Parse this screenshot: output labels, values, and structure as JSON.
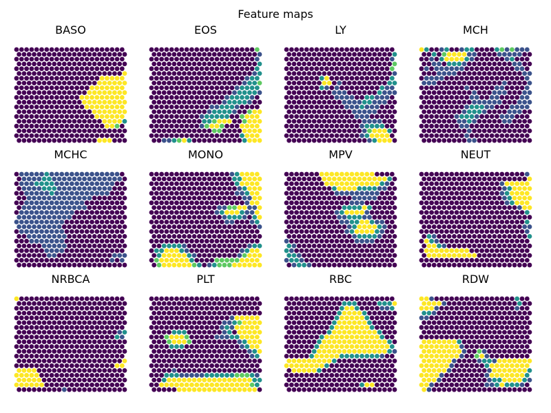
{
  "figure_title": "Feature maps",
  "chart_data": {
    "type": "heatmap",
    "title": "Feature maps",
    "grid": false,
    "colormap": "viridis",
    "colors": {
      "low": "#440154",
      "mid_low": "#3b528b",
      "mid": "#21918c",
      "mid_high": "#5ec962",
      "high": "#fde725"
    },
    "rows": 20,
    "cols": 22,
    "encoding": "Each map is 20 rows (top to bottom); each row string has 22 cells: 0=#440154, 1=#3b528b, 2=#21918c, 3=#5ec962, 4=#fde725",
    "maps": [
      {
        "name": "BASO",
        "rows": [
          "0000000000000000000000",
          "0000000000000000000000",
          "0000000000000000000000",
          "0000000000000000000000",
          "0000000000000000000000",
          "0000000000000000000004",
          "0000000000000000044444",
          "0000000000000000444444",
          "0000000000000004444444",
          "0000000000000044444444",
          "0000000000000444444444",
          "0000000000000444444444",
          "0000000000000044444444",
          "0000000000000004444444",
          "0000000000000000444444",
          "0000000000000000044442",
          "0000000000000000004430",
          "0000000000000000000000",
          "0000000000000000000000",
          "0000000000000000444000"
        ]
      },
      {
        "name": "EOS",
        "rows": [
          "0000000000000000000003",
          "0000000000000000000001",
          "0000000000000000000001",
          "0000000000000000000002",
          "0000000000000000000002",
          "0000000000000000000012",
          "0000000000000000000122",
          "0000000000000000001223",
          "0000000000000000012222",
          "0000000000000000122221",
          "0000000000000001222210",
          "0000000000000012222100",
          "0000000000001122210000",
          "0000000000012222100344",
          "0000000000122222003444",
          "0000000000223444003444",
          "0000000000134430004444",
          "0000000000003300004444",
          "0000000000000000002444",
          "0011234200000000002444"
        ]
      },
      {
        "name": "LY",
        "rows": [
          "0000000000000000000000",
          "0000000000000000000002",
          "0000000000000000000001",
          "0000000000000000000003",
          "0000000000000000000003",
          "0000000000000000000001",
          "0000000240000000000002",
          "0000000440100000000022",
          "0000000210100000000211",
          "0000000001110000002111",
          "0000000000111100221110",
          "0000000000011112211100",
          "0000000000001112111000",
          "0000000000000111110000",
          "0000000000000011100000",
          "0000000000000001111000",
          "0000000000000001222200",
          "0000000000000001344420",
          "0000000000000001244440",
          "0000000000000000124440"
        ]
      },
      {
        "name": "MCH",
        "rows": [
          "4200120012200002313111",
          "0020344441100001111100",
          "0010244442100000012000",
          "0011022210000000001100",
          "0101111110000000000110",
          "0001111000000000000011",
          "0111100000000000000001",
          "1110000000000000100001",
          "0000000001000001100001",
          "0000000000100011100011",
          "0000000000110011000011",
          "0000000000111111000111",
          "0000000001222110001111",
          "0000000012221000011100",
          "0000000122210000111000",
          "0000000112100000110000",
          "0000000011000000000000",
          "0000000001000000000000",
          "0000000001000000000000",
          "0000000001100000000000"
        ]
      },
      {
        "name": "MCHC",
        "rows": [
          "0111112111111111111110",
          "0111122111111111111110",
          "0111222211111111111100",
          "0111122211111111111000",
          "0011111211111111111000",
          "0011111111111110000000",
          "0011111111111100000000",
          "0111111111111100000000",
          "0111111111110000000000",
          "1111111111100000000000",
          "1111111111000000000000",
          "1111111110000000000000",
          "0111111111000000000000",
          "0011111111000000000000",
          "0001111111000000000000",
          "0000011111000000000000",
          "0000001111000000000000",
          "0000001100000000000111",
          "0000000000000000000101",
          "0000000000000000000000"
        ]
      },
      {
        "name": "MONO",
        "rows": [
          "0000000000000000124444",
          "0000000000000000224444",
          "0000000000000000024444",
          "0000000000000000012444",
          "0000000000000000011244",
          "0000000000000000001144",
          "0000000000000000000144",
          "0000000000000113344114",
          "0000000000000124442114",
          "0000000000000012221024",
          "0000000000000001100012",
          "0000000000000000000001",
          "0000000000000000000000",
          "0000000000000000000000",
          "0000000000000000000000",
          "0022221000000000000122",
          "0224442100000000001244",
          "0244444210000000013444",
          "0344444420000333334444",
          "0344444432012333444444"
        ]
      },
      {
        "name": "MPV",
        "rows": [
          "0000000444444444440000",
          "0000000444444444444420",
          "0000000044444444444210",
          "0000000002444422221100",
          "0000000000111111111000",
          "0000000000000111110000",
          "0000000000000111000000",
          "0000000000022224200000",
          "0000000000124444100000",
          "0000000000112221100000",
          "0000000000011224421100",
          "0000000000001244442100",
          "0000000000001244442100",
          "0000000000000122221000",
          "1000000000000011110000",
          "2100000000000000000000",
          "2100000000000000000000",
          "2210000000000000000000",
          "1221000000000000000000",
          "0122100000000000000000"
        ]
      },
      {
        "name": "NEUT",
        "rows": [
          "0000000000000000000001",
          "0000000000000000000004",
          "0000000000000000144444",
          "0000000000000000124444",
          "0000000000000000124444",
          "0000000000000000124444",
          "0000000000000000012444",
          "0000000000000000000144",
          "0000000000000000000002",
          "0000000000000000000000",
          "0000000000000000000002",
          "0000000000000000000011",
          "0000000000000000000001",
          "0210000000000000000002",
          "0421000000000000000000",
          "0442100000000000000000",
          "0444444444000000000000",
          "0444444444400000000000",
          "0000000000000000000000",
          "0000000000000000000000"
        ]
      },
      {
        "name": "NRBCA",
        "rows": [
          "4000000000000000000000",
          "0000000000000000000000",
          "0000000000000000000000",
          "0000000000000000000000",
          "0000000000000000000000",
          "0000000000000000000000",
          "0000000000000000000000",
          "0000000000000000000012",
          "0000000000000000000021",
          "0000000000000000000000",
          "0000000000000000000000",
          "0000000000000000000000",
          "0000000000000000000000",
          "0000000000000000000004",
          "0000000000000000000044",
          "4444000000000000000000",
          "4444400000000000000000",
          "4444400000000000000000",
          "4444440000000000000000",
          "0000000001000000000000"
        ]
      },
      {
        "name": "PLT",
        "rows": [
          "0000000000000000000000",
          "0000000000000000000000",
          "0000000000000000000000",
          "0000000000000000000000",
          "0000000000000000144444",
          "0000000000000011234444",
          "0000000000000012144444",
          "0000222000000012044444",
          "0003444300000111224444",
          "0003444300000000012444",
          "0000222000000000001244",
          "0000000000000000000124",
          "0000000000000000000012",
          "0000000000000000000000",
          "0000000000000000000000",
          "0000100000000000000000",
          "0002221111122222233321",
          "0024444444444444444422",
          "0044444444444444444432",
          "0000044444444444444440"
        ]
      },
      {
        "name": "RBC",
        "rows": [
          "0000000000000000000000",
          "0000000000022200002224",
          "0000000000024420000112",
          "0000000000244442000000",
          "0000000000244444200000",
          "0000000002444444200000",
          "0000000002444444420000",
          "0000000024444444442000",
          "0000000244444444444200",
          "0000002444444444444420",
          "0000002444444444444442",
          "0000024444444444444421",
          "0000024444422222222100",
          "4444444442000000000000",
          "4444444420000000000000",
          "0444442000000000000000",
          "0000000000000000000000",
          "0000000000000000000000",
          "0000000000000002440000",
          "0000000000000000000000"
        ]
      },
      {
        "name": "RDW",
        "rows": [
          "4410000000000000000200",
          "4444100000000000000200",
          "4441000000000000000100",
          "2210000000000000000000",
          "1100000000000000000000",
          "0000000000000000000000",
          "0000000000000000000000",
          "0000000000000000000000",
          "0000000000000000000000",
          "4444444200000000000000",
          "4444444410000000000000",
          "4444444410031000000000",
          "4444444410034100000000",
          "4444441000012214444444",
          "4444441000000244444444",
          "4444410000000144444442",
          "4444100000000144444442",
          "4441000000000122444421",
          "4410000000000112422210",
          "4100000000000000000000"
        ]
      }
    ]
  }
}
